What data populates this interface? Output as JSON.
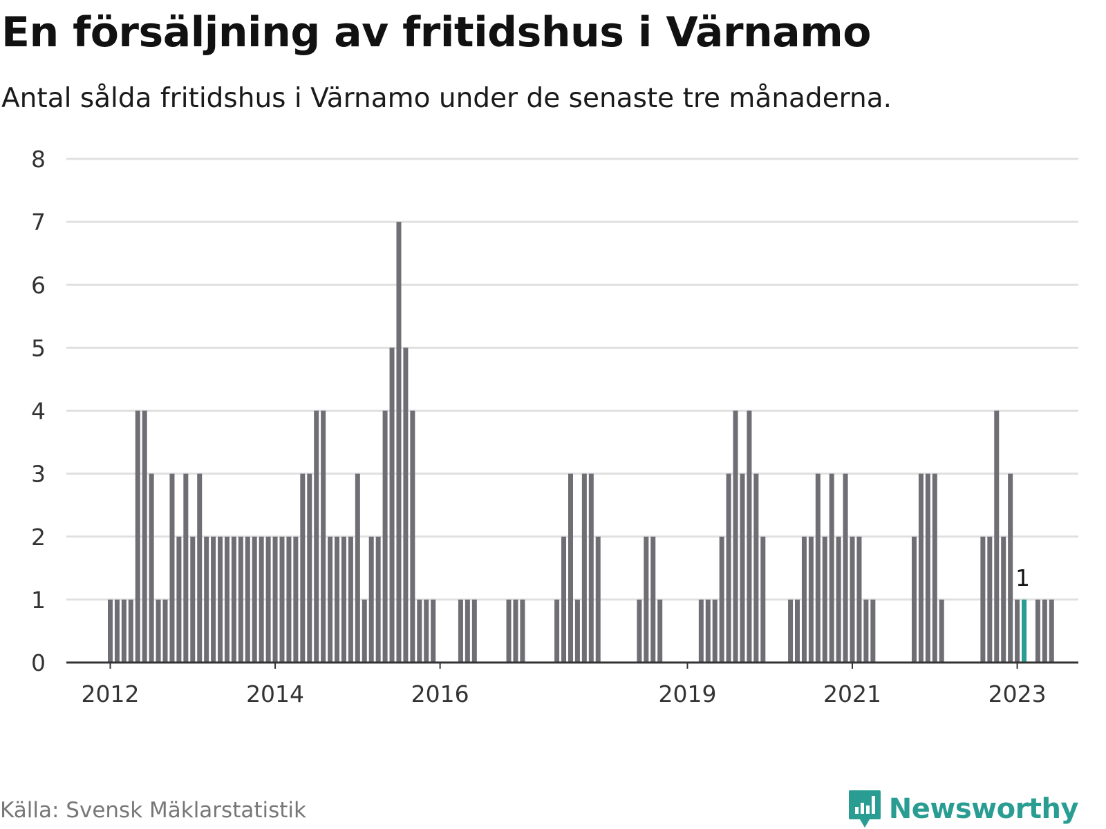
{
  "title": "En försäljning av fritidshus i Värnamo",
  "subtitle": "Antal sålda fritidshus i Värnamo under de senaste tre månaderna.",
  "source": "Källa: Svensk Mäklarstatistik",
  "brand": {
    "name": "Newsworthy",
    "logo_icon": "newsworthy-logo-icon"
  },
  "colors": {
    "bar": "#6e6e74",
    "highlight": "#2a9d93",
    "grid": "#e0e0e0",
    "axis": "#333333"
  },
  "chart_data": {
    "type": "bar",
    "title": "En försäljning av fritidshus i Värnamo",
    "ylabel": "",
    "xlabel": "",
    "ylim": [
      0,
      8
    ],
    "yticks": [
      0,
      1,
      2,
      3,
      4,
      5,
      6,
      7,
      8
    ],
    "grid": true,
    "start": {
      "year": 2011,
      "month": 10
    },
    "x_ticks": [
      {
        "label": "2012",
        "index": 3
      },
      {
        "label": "2014",
        "index": 27
      },
      {
        "label": "2016",
        "index": 51
      },
      {
        "label": "2019",
        "index": 87
      },
      {
        "label": "2021",
        "index": 111
      },
      {
        "label": "2023",
        "index": 135
      }
    ],
    "values": [
      0,
      0,
      0,
      1,
      1,
      1,
      1,
      4,
      4,
      3,
      1,
      1,
      3,
      2,
      3,
      2,
      3,
      2,
      2,
      2,
      2,
      2,
      2,
      2,
      2,
      2,
      2,
      2,
      2,
      2,
      2,
      3,
      3,
      4,
      4,
      2,
      2,
      2,
      2,
      3,
      1,
      2,
      2,
      4,
      5,
      7,
      5,
      4,
      1,
      1,
      1,
      0,
      0,
      0,
      1,
      1,
      1,
      0,
      0,
      0,
      0,
      1,
      1,
      1,
      0,
      0,
      0,
      0,
      1,
      2,
      3,
      1,
      3,
      3,
      2,
      0,
      0,
      0,
      0,
      0,
      1,
      2,
      2,
      1,
      0,
      0,
      0,
      0,
      0,
      1,
      1,
      1,
      2,
      3,
      4,
      3,
      4,
      3,
      2,
      0,
      0,
      0,
      1,
      1,
      2,
      2,
      3,
      2,
      3,
      2,
      3,
      2,
      2,
      1,
      1,
      0,
      0,
      0,
      0,
      0,
      2,
      3,
      3,
      3,
      1,
      0,
      0,
      0,
      0,
      0,
      2,
      2,
      4,
      2,
      3,
      1,
      1,
      0,
      1,
      1,
      1
    ],
    "highlight_index": 136,
    "highlight_label": "1"
  }
}
